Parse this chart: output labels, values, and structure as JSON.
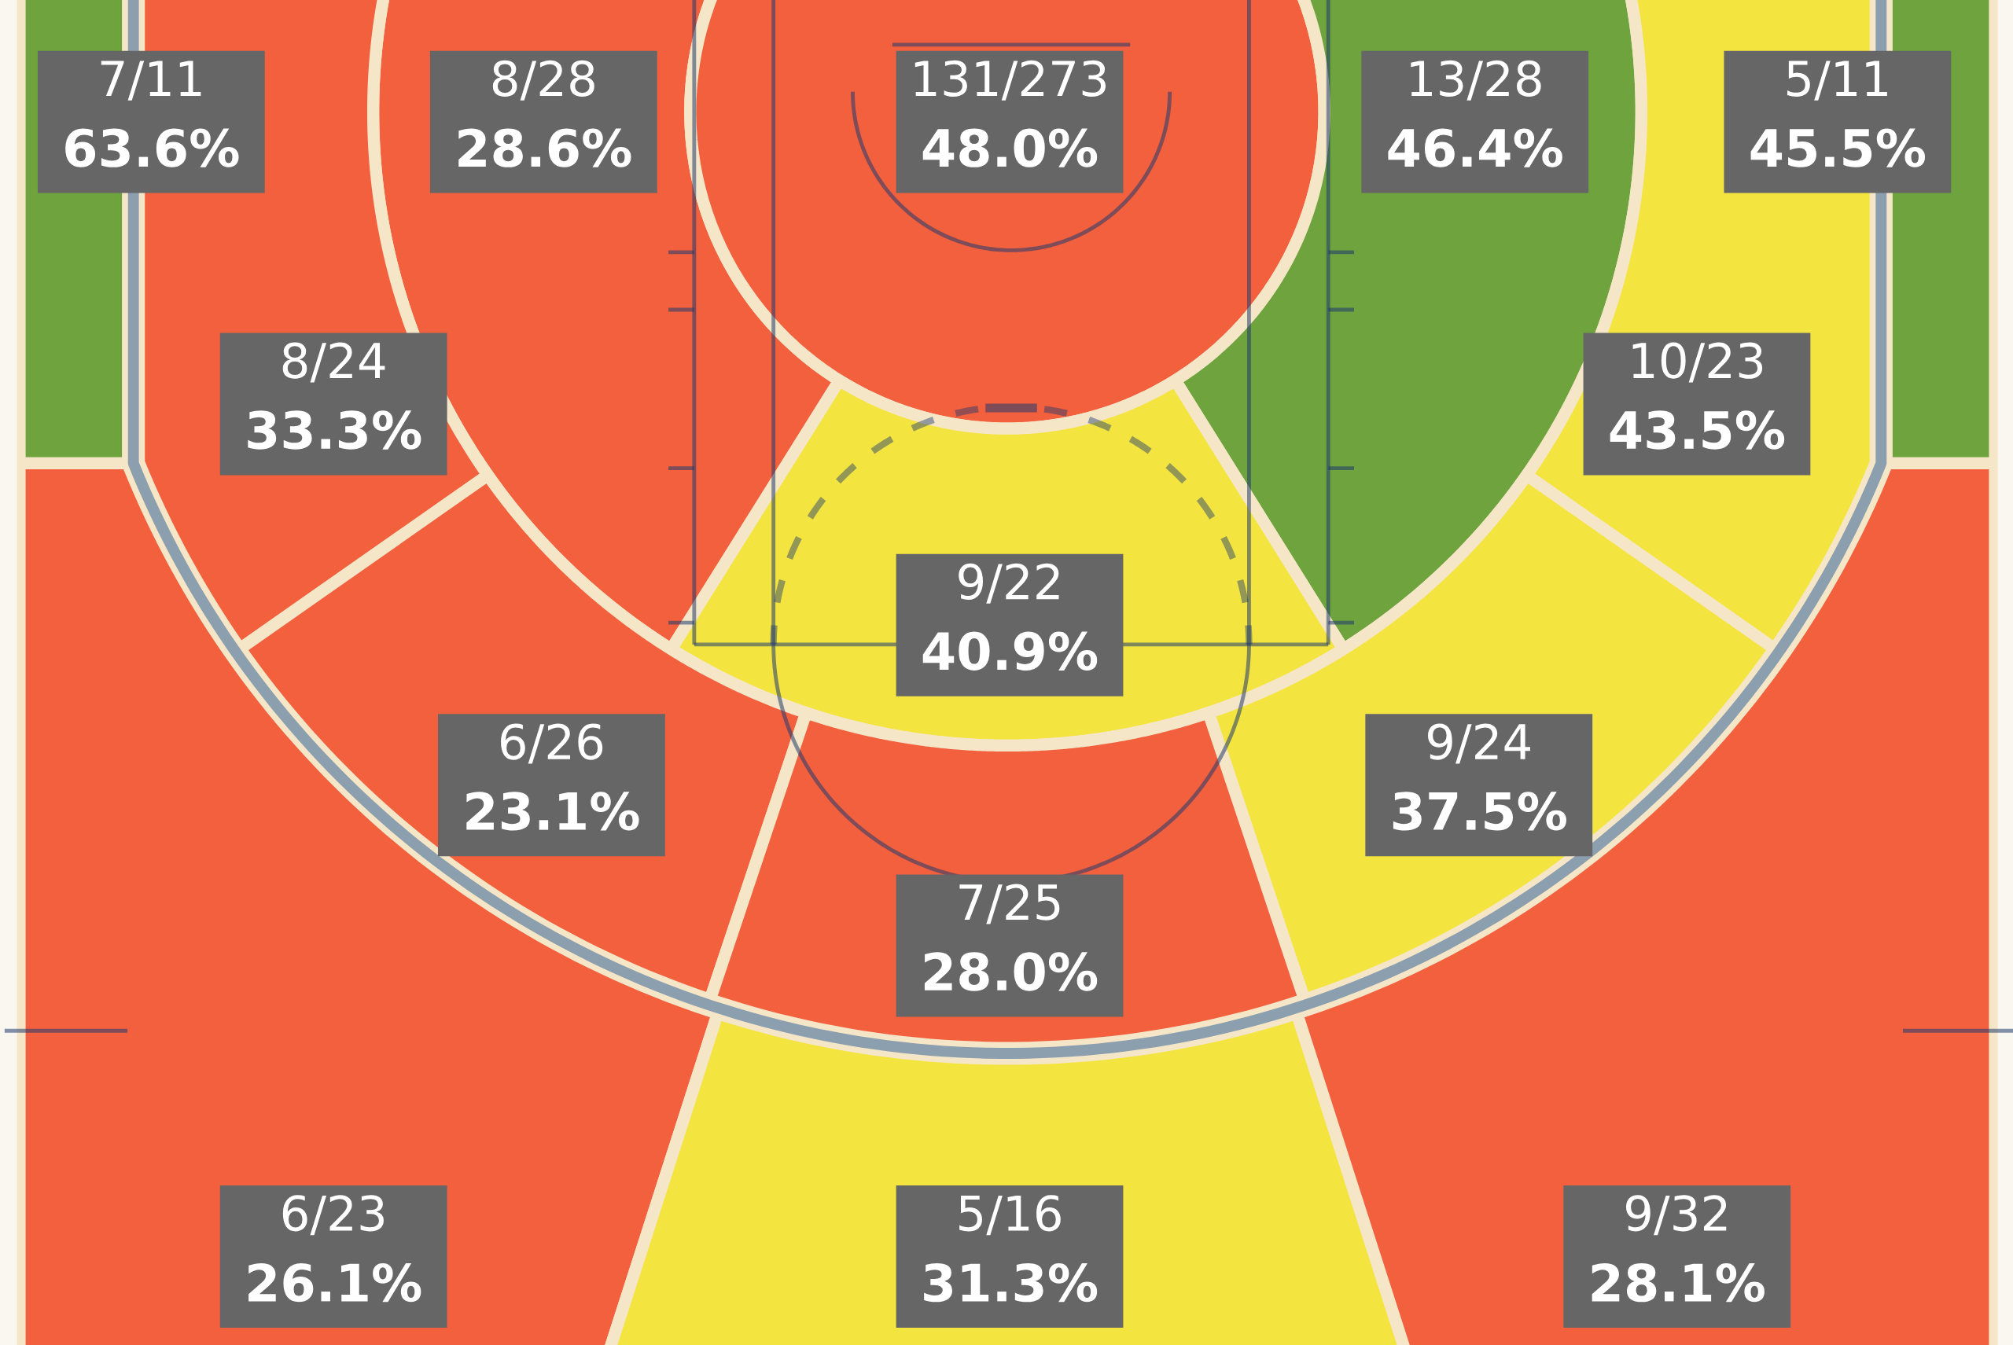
{
  "chart_data": {
    "type": "other",
    "values": [
      63.6,
      28.6,
      48.0,
      46.4,
      45.5,
      33.3,
      43.5,
      40.9,
      23.1,
      37.5,
      28.0,
      26.1,
      31.3,
      28.1
    ],
    "value_labels": [
      "7/11\n63.6%",
      "8/28\n28.6%",
      "131/273\n48.0%",
      "13/28\n46.4%",
      "5/11\n45.5%",
      "8/24\n33.3%",
      "10/23\n43.5%",
      "9/22\n40.9%",
      "6/26\n23.1%",
      "9/24\n37.5%",
      "7/25\n28.0%",
      "6/23\n26.1%",
      "5/16\n31.3%",
      "9/32\n28.1%"
    ],
    "colors": [
      "#6ea33e",
      "#f2603e",
      "#f2603e",
      "#6ea33e",
      "#6ea33e",
      "#f2603e",
      "#f3e440",
      "#f3e440",
      "#f2603e",
      "#f3e440",
      "#f2603e",
      "#f2603e",
      "#f3e440",
      "#f2603e"
    ]
  }
}
